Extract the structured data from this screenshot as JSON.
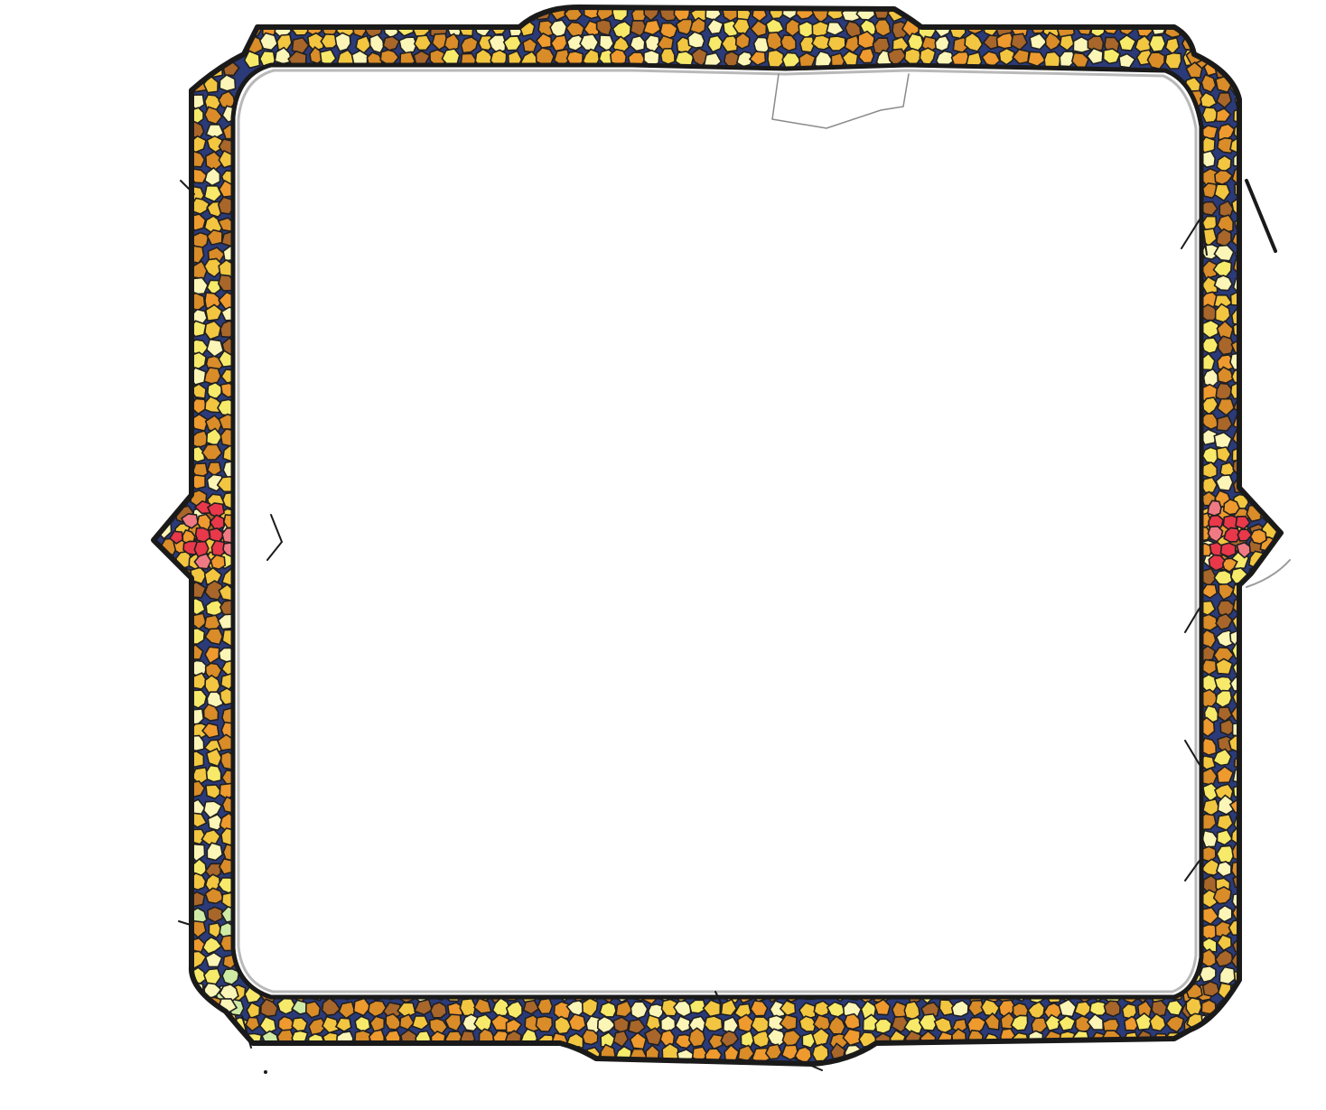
{
  "frame": {
    "kind": "stained-glass mosaic border",
    "colors": {
      "background": "#ffffff",
      "lead": "#1a1a1a",
      "grout_blue": "#2b3a78",
      "amber": "#d98c28",
      "gold": "#f2c640",
      "yellow": "#f7ea6a",
      "pale_yellow": "#fbf5b8",
      "brown": "#a8662a",
      "orange": "#ee9a2e",
      "light_green": "#cfeaa4",
      "red": "#e8384a",
      "pink": "#f07a84"
    },
    "ornaments": [
      "left-diamond-jewel",
      "right-diamond-jewel"
    ]
  }
}
